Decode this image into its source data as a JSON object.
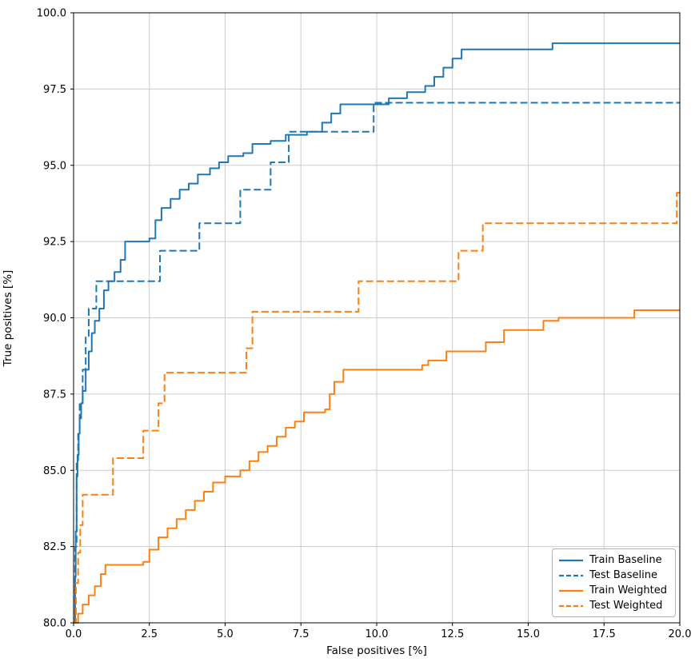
{
  "figure": {
    "kind": "matplotlib-roc-plot"
  },
  "chart_data": {
    "type": "line",
    "step_interpolation": "horizontal-then-vertical",
    "title": "",
    "xlabel": "False positives [%]",
    "ylabel": "True positives [%]",
    "xlim": [
      0,
      20
    ],
    "ylim": [
      80,
      100
    ],
    "xticks": [
      0.0,
      2.5,
      5.0,
      7.5,
      10.0,
      12.5,
      15.0,
      17.5,
      20.0
    ],
    "xtick_labels": [
      "0.0",
      "2.5",
      "5.0",
      "7.5",
      "10.0",
      "12.5",
      "15.0",
      "17.5",
      "20.0"
    ],
    "yticks": [
      80.0,
      82.5,
      85.0,
      87.5,
      90.0,
      92.5,
      95.0,
      97.5,
      100.0
    ],
    "ytick_labels": [
      "80.0",
      "82.5",
      "85.0",
      "87.5",
      "90.0",
      "92.5",
      "95.0",
      "97.5",
      "100.0"
    ],
    "grid": true,
    "grid_color": "#cccccc",
    "spine_color": "#000000",
    "legend_position": "lower right",
    "line_width": 2,
    "series": [
      {
        "name": "Train Baseline",
        "color": "#1f77b4",
        "dash": "solid",
        "points": [
          [
            0,
            80
          ],
          [
            0.05,
            81.5
          ],
          [
            0.07,
            83.0
          ],
          [
            0.1,
            84.8
          ],
          [
            0.13,
            85.5
          ],
          [
            0.17,
            86.2
          ],
          [
            0.2,
            86.7
          ],
          [
            0.25,
            87.2
          ],
          [
            0.3,
            87.6
          ],
          [
            0.4,
            88.3
          ],
          [
            0.5,
            88.9
          ],
          [
            0.6,
            89.5
          ],
          [
            0.7,
            89.9
          ],
          [
            0.85,
            90.3
          ],
          [
            1.0,
            90.9
          ],
          [
            1.15,
            91.2
          ],
          [
            1.35,
            91.5
          ],
          [
            1.55,
            91.9
          ],
          [
            1.7,
            92.5
          ],
          [
            2.5,
            92.6
          ],
          [
            2.7,
            93.2
          ],
          [
            2.9,
            93.6
          ],
          [
            3.2,
            93.9
          ],
          [
            3.5,
            94.2
          ],
          [
            3.8,
            94.4
          ],
          [
            4.1,
            94.7
          ],
          [
            4.5,
            94.9
          ],
          [
            4.8,
            95.1
          ],
          [
            5.1,
            95.3
          ],
          [
            5.6,
            95.4
          ],
          [
            5.9,
            95.7
          ],
          [
            6.5,
            95.8
          ],
          [
            7.0,
            96.0
          ],
          [
            7.7,
            96.1
          ],
          [
            8.2,
            96.4
          ],
          [
            8.5,
            96.7
          ],
          [
            8.8,
            97.0
          ],
          [
            10.4,
            97.2
          ],
          [
            11.0,
            97.4
          ],
          [
            11.6,
            97.6
          ],
          [
            11.9,
            97.9
          ],
          [
            12.2,
            98.2
          ],
          [
            12.5,
            98.5
          ],
          [
            12.8,
            98.8
          ],
          [
            15.8,
            99.0
          ],
          [
            20,
            99.0
          ]
        ]
      },
      {
        "name": "Test Baseline",
        "color": "#1f77b4",
        "dash": "dashed",
        "points": [
          [
            0,
            80
          ],
          [
            0.05,
            82.5
          ],
          [
            0.1,
            85.3
          ],
          [
            0.15,
            86.3
          ],
          [
            0.2,
            87.2
          ],
          [
            0.3,
            88.3
          ],
          [
            0.4,
            89.4
          ],
          [
            0.5,
            90.3
          ],
          [
            0.75,
            91.2
          ],
          [
            2.85,
            92.2
          ],
          [
            4.15,
            93.1
          ],
          [
            5.5,
            94.2
          ],
          [
            6.5,
            95.1
          ],
          [
            7.1,
            96.1
          ],
          [
            9.9,
            97.05
          ],
          [
            20,
            97.05
          ]
        ]
      },
      {
        "name": "Train Weighted",
        "color": "#ff7f0e",
        "dash": "solid",
        "points": [
          [
            0,
            80
          ],
          [
            0.15,
            80.3
          ],
          [
            0.3,
            80.6
          ],
          [
            0.5,
            80.9
          ],
          [
            0.7,
            81.2
          ],
          [
            0.9,
            81.6
          ],
          [
            1.05,
            81.9
          ],
          [
            2.3,
            82.0
          ],
          [
            2.5,
            82.4
          ],
          [
            2.8,
            82.8
          ],
          [
            3.1,
            83.1
          ],
          [
            3.4,
            83.4
          ],
          [
            3.7,
            83.7
          ],
          [
            4.0,
            84.0
          ],
          [
            4.3,
            84.3
          ],
          [
            4.6,
            84.6
          ],
          [
            5.0,
            84.8
          ],
          [
            5.5,
            85.0
          ],
          [
            5.8,
            85.3
          ],
          [
            6.1,
            85.6
          ],
          [
            6.4,
            85.8
          ],
          [
            6.7,
            86.1
          ],
          [
            7.0,
            86.4
          ],
          [
            7.3,
            86.6
          ],
          [
            7.6,
            86.9
          ],
          [
            8.3,
            87.0
          ],
          [
            8.45,
            87.5
          ],
          [
            8.6,
            87.9
          ],
          [
            8.9,
            88.3
          ],
          [
            11.5,
            88.45
          ],
          [
            11.7,
            88.6
          ],
          [
            12.3,
            88.9
          ],
          [
            13.6,
            89.2
          ],
          [
            14.2,
            89.6
          ],
          [
            15.5,
            89.9
          ],
          [
            16.0,
            90.0
          ],
          [
            18.5,
            90.25
          ],
          [
            20,
            90.25
          ]
        ]
      },
      {
        "name": "Test Weighted",
        "color": "#ff7f0e",
        "dash": "dashed",
        "points": [
          [
            0,
            80
          ],
          [
            0.08,
            81.3
          ],
          [
            0.15,
            82.3
          ],
          [
            0.22,
            83.2
          ],
          [
            0.3,
            84.2
          ],
          [
            1.3,
            85.4
          ],
          [
            2.3,
            86.3
          ],
          [
            2.8,
            87.2
          ],
          [
            3.0,
            88.2
          ],
          [
            5.7,
            89.0
          ],
          [
            5.9,
            90.2
          ],
          [
            9.4,
            91.2
          ],
          [
            12.7,
            92.2
          ],
          [
            13.5,
            93.1
          ],
          [
            19.9,
            94.1
          ],
          [
            20,
            94.1
          ]
        ]
      }
    ]
  }
}
